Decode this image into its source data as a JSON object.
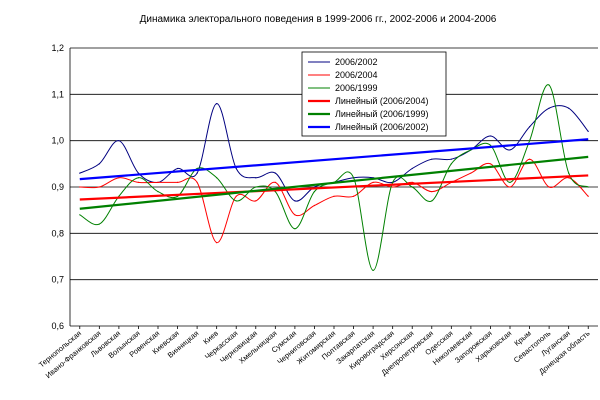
{
  "chart_data": {
    "type": "line",
    "title": "Динамика электорального поведения в 1999-2006 гг., 2002-2006 и 2004-2006",
    "xlabel": "",
    "ylabel": "",
    "ylim": [
      0.6,
      1.2
    ],
    "yticks": [
      "0,6",
      "0,7",
      "0,8",
      "0,9",
      "1,0",
      "1,1",
      "1,2"
    ],
    "grid": "horizontal",
    "legend_position": "top-center",
    "categories": [
      "Тернопольская",
      "Ивано-Франковская",
      "Львовская",
      "Волынская",
      "Ровенская",
      "Киевская",
      "Винницкая",
      "Киев",
      "Черкасская",
      "Черновицкая",
      "Хмельницкая",
      "Сумская",
      "Черниговская",
      "Житомирская",
      "Полтавская",
      "Закарпатская",
      "Кировоградская",
      "Херсонская",
      "Днепропетровская",
      "Одесская",
      "Николаевская",
      "Запорожская",
      "Харьковская",
      "Крым",
      "Севастополь",
      "Луганская",
      "Донецкая область"
    ],
    "series": [
      {
        "name": "2006/2002",
        "color": "#000080",
        "values": [
          0.93,
          0.95,
          1.0,
          0.93,
          0.91,
          0.94,
          0.93,
          1.08,
          0.94,
          0.92,
          0.93,
          0.87,
          0.9,
          0.91,
          0.92,
          0.92,
          0.91,
          0.94,
          0.96,
          0.96,
          0.98,
          1.01,
          0.98,
          1.03,
          1.07,
          1.07,
          1.02
        ]
      },
      {
        "name": "2006/2004",
        "color": "#ff0000",
        "values": [
          0.9,
          0.9,
          0.92,
          0.91,
          0.91,
          0.91,
          0.91,
          0.78,
          0.88,
          0.87,
          0.91,
          0.84,
          0.86,
          0.88,
          0.88,
          0.91,
          0.9,
          0.91,
          0.89,
          0.91,
          0.93,
          0.95,
          0.9,
          0.96,
          0.9,
          0.92,
          0.88
        ]
      },
      {
        "name": "2006/1999",
        "color": "#008000",
        "values": [
          0.84,
          0.82,
          0.88,
          0.92,
          0.89,
          0.88,
          0.94,
          0.92,
          0.87,
          0.9,
          0.89,
          0.81,
          0.89,
          0.91,
          0.92,
          0.72,
          0.91,
          0.9,
          0.87,
          0.95,
          0.98,
          0.99,
          0.91,
          1.0,
          1.12,
          0.93,
          0.9
        ]
      },
      {
        "name": "Линейный (2006/2004)",
        "color": "#ff0000",
        "trend_of": "2006/2004",
        "values": [
          0.873,
          0.875,
          0.877,
          0.879,
          0.881,
          0.883,
          0.885,
          0.887,
          0.889,
          0.891,
          0.893,
          0.895,
          0.897,
          0.899,
          0.901,
          0.903,
          0.905,
          0.907,
          0.909,
          0.911,
          0.913,
          0.915,
          0.917,
          0.919,
          0.921,
          0.923,
          0.925
        ]
      },
      {
        "name": "Линейный (2006/1999)",
        "color": "#008000",
        "trend_of": "2006/1999",
        "values": [
          0.853,
          0.857,
          0.861,
          0.866,
          0.87,
          0.874,
          0.879,
          0.883,
          0.887,
          0.892,
          0.896,
          0.9,
          0.904,
          0.909,
          0.913,
          0.917,
          0.922,
          0.926,
          0.93,
          0.935,
          0.939,
          0.943,
          0.947,
          0.952,
          0.956,
          0.96,
          0.965
        ]
      },
      {
        "name": "Линейный (2006/2002)",
        "color": "#0000ff",
        "trend_of": "2006/2002",
        "values": [
          0.917,
          0.92,
          0.923,
          0.927,
          0.93,
          0.933,
          0.937,
          0.94,
          0.943,
          0.947,
          0.95,
          0.953,
          0.957,
          0.96,
          0.963,
          0.967,
          0.97,
          0.973,
          0.977,
          0.98,
          0.983,
          0.987,
          0.99,
          0.993,
          0.997,
          1.0,
          1.003
        ]
      }
    ]
  }
}
